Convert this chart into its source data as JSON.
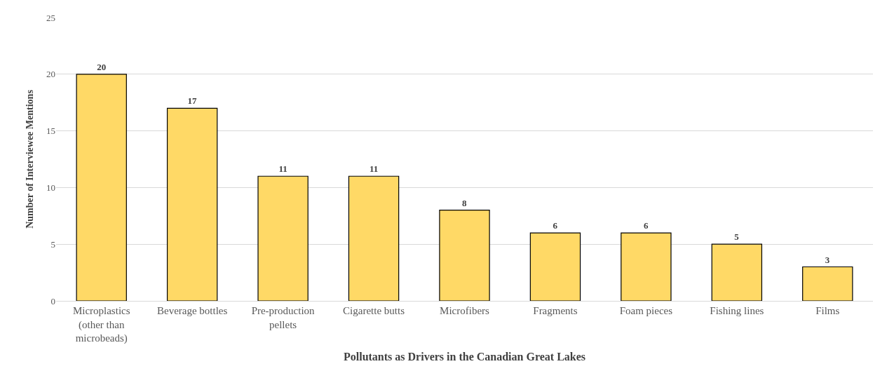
{
  "chart_data": {
    "type": "bar",
    "xlabel": "Pollutants as Drivers in the Canadian Great Lakes",
    "ylabel": "Number of Interviewee Mentions",
    "categories": [
      "Microplastics (other than microbeads)",
      "Beverage bottles",
      "Pre-production pellets",
      "Cigarette butts",
      "Microfibers",
      "Fragments",
      "Foam pieces",
      "Fishing lines",
      "Films"
    ],
    "values": [
      20,
      17,
      11,
      11,
      8,
      6,
      6,
      5,
      3
    ],
    "color": "#ffd966",
    "ylim": [
      0,
      25
    ],
    "yticks": [
      0,
      5,
      10,
      15,
      20,
      25
    ],
    "grid": "y",
    "data_labels": true
  }
}
